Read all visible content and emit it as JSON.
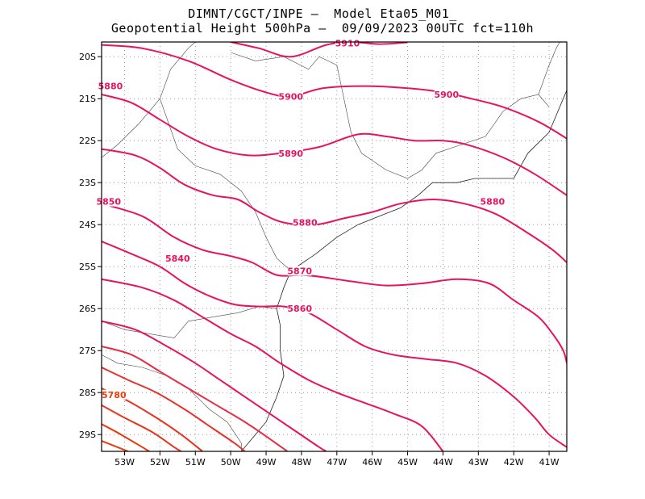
{
  "header": {
    "title_line1": "DIMNT/CGCT/INPE –  Model Eta05_M01_",
    "title_line2": "Geopotential Height 500hPa –  09/09/2023 00UTC fct=110h"
  },
  "map": {
    "lon_range": [
      -53.65,
      -40.5
    ],
    "lat_range": [
      -29.4,
      -19.65
    ],
    "x_ticks": [
      {
        "value": -53,
        "label": "53W"
      },
      {
        "value": -52,
        "label": "52W"
      },
      {
        "value": -51,
        "label": "51W"
      },
      {
        "value": -50,
        "label": "50W"
      },
      {
        "value": -49,
        "label": "49W"
      },
      {
        "value": -48,
        "label": "48W"
      },
      {
        "value": -47,
        "label": "47W"
      },
      {
        "value": -46,
        "label": "46W"
      },
      {
        "value": -45,
        "label": "45W"
      },
      {
        "value": -44,
        "label": "44W"
      },
      {
        "value": -43,
        "label": "43W"
      },
      {
        "value": -42,
        "label": "42W"
      },
      {
        "value": -41,
        "label": "41W"
      }
    ],
    "y_ticks": [
      {
        "value": -20,
        "label": "20S"
      },
      {
        "value": -21,
        "label": "21S"
      },
      {
        "value": -22,
        "label": "22S"
      },
      {
        "value": -23,
        "label": "23S"
      },
      {
        "value": -24,
        "label": "24S"
      },
      {
        "value": -25,
        "label": "25S"
      },
      {
        "value": -26,
        "label": "26S"
      },
      {
        "value": -27,
        "label": "27S"
      },
      {
        "value": -28,
        "label": "28S"
      },
      {
        "value": -29,
        "label": "29S"
      }
    ],
    "grid": "dotted",
    "coastline": [
      [
        -48.7,
        -26.0
      ],
      [
        -48.6,
        -26.4
      ],
      [
        -48.6,
        -27.0
      ],
      [
        -48.5,
        -27.6
      ],
      [
        -48.7,
        -28.1
      ],
      [
        -49.0,
        -28.7
      ],
      [
        -49.4,
        -29.1
      ],
      [
        -49.7,
        -29.4
      ]
    ],
    "coast_north": [
      [
        -48.7,
        -26.0
      ],
      [
        -48.5,
        -25.5
      ],
      [
        -48.3,
        -25.1
      ],
      [
        -47.6,
        -24.7
      ],
      [
        -47.0,
        -24.3
      ],
      [
        -46.4,
        -24.0
      ],
      [
        -45.8,
        -23.8
      ],
      [
        -45.2,
        -23.6
      ],
      [
        -44.7,
        -23.3
      ],
      [
        -44.3,
        -23.0
      ],
      [
        -43.6,
        -23.0
      ],
      [
        -43.1,
        -22.9
      ],
      [
        -42.5,
        -22.9
      ],
      [
        -42.0,
        -22.9
      ],
      [
        -41.6,
        -22.3
      ],
      [
        -41.0,
        -21.8
      ],
      [
        -40.7,
        -21.2
      ],
      [
        -40.5,
        -20.8
      ]
    ],
    "borders": [
      [
        [
          -53.65,
          -26.3
        ],
        [
          -53.0,
          -26.5
        ],
        [
          -52.3,
          -26.6
        ],
        [
          -51.6,
          -26.7
        ],
        [
          -51.2,
          -26.3
        ],
        [
          -50.5,
          -26.2
        ],
        [
          -49.8,
          -26.1
        ],
        [
          -49.2,
          -25.95
        ],
        [
          -48.7,
          -26.0
        ]
      ],
      [
        [
          -53.65,
          -27.1
        ],
        [
          -53.2,
          -27.3
        ],
        [
          -52.5,
          -27.4
        ],
        [
          -51.8,
          -27.6
        ],
        [
          -51.2,
          -27.9
        ],
        [
          -50.6,
          -28.4
        ],
        [
          -50.1,
          -28.7
        ],
        [
          -49.7,
          -29.2
        ],
        [
          -49.7,
          -29.4
        ]
      ],
      [
        [
          -53.65,
          -22.4
        ],
        [
          -53.2,
          -22.1
        ],
        [
          -52.6,
          -21.6
        ],
        [
          -52.0,
          -21.0
        ],
        [
          -51.7,
          -20.3
        ],
        [
          -51.2,
          -19.8
        ],
        [
          -51.0,
          -19.65
        ]
      ],
      [
        [
          -52.0,
          -21.0
        ],
        [
          -51.5,
          -22.2
        ],
        [
          -51.0,
          -22.6
        ],
        [
          -50.3,
          -22.8
        ],
        [
          -49.7,
          -23.2
        ],
        [
          -49.3,
          -23.7
        ],
        [
          -49.0,
          -24.3
        ],
        [
          -48.7,
          -24.8
        ],
        [
          -48.3,
          -25.1
        ]
      ],
      [
        [
          -50.0,
          -19.9
        ],
        [
          -49.3,
          -20.1
        ],
        [
          -48.5,
          -20.0
        ],
        [
          -47.8,
          -20.3
        ],
        [
          -47.5,
          -20.0
        ],
        [
          -47.0,
          -20.2
        ]
      ],
      [
        [
          -47.0,
          -20.2
        ],
        [
          -46.8,
          -21.0
        ],
        [
          -46.6,
          -21.8
        ],
        [
          -46.3,
          -22.3
        ],
        [
          -45.6,
          -22.7
        ],
        [
          -45.0,
          -22.9
        ],
        [
          -44.6,
          -22.7
        ],
        [
          -44.2,
          -22.3
        ],
        [
          -43.5,
          -22.1
        ],
        [
          -42.8,
          -21.9
        ],
        [
          -42.3,
          -21.3
        ],
        [
          -41.8,
          -21.0
        ],
        [
          -41.3,
          -20.9
        ],
        [
          -41.0,
          -21.2
        ]
      ],
      [
        [
          -41.3,
          -20.9
        ],
        [
          -41.0,
          -20.2
        ],
        [
          -40.8,
          -19.8
        ],
        [
          -40.7,
          -19.65
        ]
      ]
    ],
    "contours": [
      {
        "value": 5910,
        "color": "#e8125e",
        "label": "5910",
        "label_at": [
          -46.7,
          -19.68
        ],
        "points": [
          [
            -50.0,
            -19.65
          ],
          [
            -49.2,
            -19.8
          ],
          [
            -48.3,
            -20.0
          ],
          [
            -47.3,
            -19.72
          ],
          [
            -46.6,
            -19.65
          ],
          [
            -45.8,
            -19.7
          ],
          [
            -45.0,
            -19.66
          ]
        ]
      },
      {
        "value": 5900,
        "color": "#e8125e",
        "label": "5900",
        "label_at": [
          -48.3,
          -20.95
        ],
        "points": [
          [
            -53.65,
            -19.72
          ],
          [
            -52.5,
            -19.8
          ],
          [
            -51.2,
            -20.1
          ],
          [
            -50.0,
            -20.55
          ],
          [
            -49.0,
            -20.85
          ],
          [
            -48.3,
            -20.95
          ],
          [
            -47.4,
            -20.75
          ],
          [
            -46.2,
            -20.7
          ],
          [
            -45.0,
            -20.75
          ],
          [
            -44.0,
            -20.85
          ],
          [
            -43.2,
            -21.0
          ],
          [
            -42.3,
            -21.2
          ],
          [
            -41.3,
            -21.55
          ],
          [
            -40.5,
            -21.95
          ]
        ]
      },
      {
        "value": 5900,
        "color": "#e8125e",
        "label": "5900",
        "label_at": [
          -43.9,
          -20.9
        ],
        "points": []
      },
      {
        "value": 5890,
        "color": "#e8125e",
        "label": "5890",
        "label_at": [
          -48.3,
          -22.3
        ],
        "points": [
          [
            -53.65,
            -20.9
          ],
          [
            -52.8,
            -21.1
          ],
          [
            -52.0,
            -21.5
          ],
          [
            -51.2,
            -21.9
          ],
          [
            -50.4,
            -22.2
          ],
          [
            -49.5,
            -22.35
          ],
          [
            -48.6,
            -22.3
          ],
          [
            -47.5,
            -22.15
          ],
          [
            -46.4,
            -21.85
          ],
          [
            -45.6,
            -21.9
          ],
          [
            -44.8,
            -22.0
          ],
          [
            -44.0,
            -22.0
          ],
          [
            -43.3,
            -22.1
          ],
          [
            -42.3,
            -22.4
          ],
          [
            -41.4,
            -22.8
          ],
          [
            -40.5,
            -23.3
          ]
        ]
      },
      {
        "value": 5880,
        "color": "#e8125e",
        "label": "5880",
        "label_at": [
          -53.4,
          -20.7
        ],
        "points": []
      },
      {
        "value": 5880,
        "color": "#e8125e",
        "label": "5880",
        "label_at": [
          -47.9,
          -23.95
        ],
        "points": [
          [
            -53.65,
            -22.2
          ],
          [
            -52.7,
            -22.35
          ],
          [
            -52.0,
            -22.65
          ],
          [
            -51.3,
            -23.05
          ],
          [
            -50.5,
            -23.3
          ],
          [
            -49.8,
            -23.4
          ],
          [
            -49.2,
            -23.7
          ],
          [
            -48.5,
            -23.95
          ],
          [
            -47.6,
            -24.0
          ],
          [
            -46.8,
            -23.85
          ],
          [
            -46.0,
            -23.7
          ],
          [
            -45.2,
            -23.5
          ],
          [
            -44.3,
            -23.4
          ],
          [
            -43.4,
            -23.5
          ],
          [
            -42.5,
            -23.75
          ],
          [
            -41.6,
            -24.2
          ],
          [
            -40.9,
            -24.6
          ],
          [
            -40.5,
            -24.9
          ]
        ]
      },
      {
        "value": 5880,
        "color": "#e8125e",
        "label": "5880",
        "label_at": [
          -42.6,
          -23.45
        ],
        "points": []
      },
      {
        "value": 5870,
        "color": "#e8125e",
        "label": "5870",
        "label_at": [
          -48.05,
          -25.1
        ],
        "points": [
          [
            -53.65,
            -23.5
          ],
          [
            -52.5,
            -23.8
          ],
          [
            -51.6,
            -24.3
          ],
          [
            -50.8,
            -24.6
          ],
          [
            -50.0,
            -24.75
          ],
          [
            -49.4,
            -24.9
          ],
          [
            -48.7,
            -25.2
          ],
          [
            -48.0,
            -25.2
          ],
          [
            -47.4,
            -25.25
          ],
          [
            -46.6,
            -25.35
          ],
          [
            -45.6,
            -25.45
          ],
          [
            -44.6,
            -25.4
          ],
          [
            -43.6,
            -25.3
          ],
          [
            -42.7,
            -25.4
          ],
          [
            -42.0,
            -25.8
          ],
          [
            -41.3,
            -26.2
          ],
          [
            -40.9,
            -26.6
          ],
          [
            -40.6,
            -27.0
          ],
          [
            -40.5,
            -27.3
          ]
        ]
      },
      {
        "value": 5860,
        "color": "#e8125e",
        "label": "5860",
        "label_at": [
          -48.05,
          -26.0
        ],
        "points": [
          [
            -53.65,
            -24.4
          ],
          [
            -52.8,
            -24.7
          ],
          [
            -52.0,
            -25.0
          ],
          [
            -51.3,
            -25.4
          ],
          [
            -50.6,
            -25.7
          ],
          [
            -49.9,
            -25.9
          ],
          [
            -49.2,
            -25.95
          ],
          [
            -48.5,
            -25.95
          ],
          [
            -47.8,
            -26.1
          ],
          [
            -47.0,
            -26.5
          ],
          [
            -46.2,
            -26.9
          ],
          [
            -45.4,
            -27.1
          ],
          [
            -44.5,
            -27.2
          ],
          [
            -43.6,
            -27.3
          ],
          [
            -42.8,
            -27.6
          ],
          [
            -42.0,
            -28.1
          ],
          [
            -41.4,
            -28.6
          ],
          [
            -41.0,
            -29.0
          ],
          [
            -40.5,
            -29.3
          ]
        ]
      },
      {
        "value": 5850,
        "color": "#e8125e",
        "label": "5850",
        "label_at": [
          -53.45,
          -23.45
        ],
        "points": [
          [
            -53.65,
            -25.3
          ],
          [
            -52.5,
            -25.5
          ],
          [
            -51.6,
            -25.8
          ],
          [
            -50.8,
            -26.2
          ],
          [
            -50.0,
            -26.6
          ],
          [
            -49.3,
            -26.9
          ],
          [
            -48.6,
            -27.3
          ],
          [
            -47.8,
            -27.7
          ],
          [
            -47.0,
            -28.0
          ],
          [
            -46.2,
            -28.25
          ],
          [
            -45.4,
            -28.5
          ],
          [
            -44.6,
            -28.8
          ],
          [
            -44.0,
            -29.4
          ]
        ]
      },
      {
        "value": 5840,
        "color": "#e8125e",
        "label": "5840",
        "label_at": [
          -51.5,
          -24.8
        ],
        "points": [
          [
            -53.65,
            -26.3
          ],
          [
            -52.7,
            -26.5
          ],
          [
            -51.8,
            -26.9
          ],
          [
            -51.0,
            -27.3
          ],
          [
            -50.3,
            -27.7
          ],
          [
            -49.6,
            -28.1
          ],
          [
            -48.9,
            -28.5
          ],
          [
            -48.2,
            -28.9
          ],
          [
            -47.5,
            -29.3
          ],
          [
            -47.3,
            -29.4
          ]
        ]
      },
      {
        "value": 5830,
        "color": "#e82a44",
        "label": "",
        "label_at": null,
        "points": [
          [
            -53.65,
            -26.9
          ],
          [
            -52.8,
            -27.1
          ],
          [
            -52.0,
            -27.5
          ],
          [
            -51.2,
            -27.9
          ],
          [
            -50.4,
            -28.3
          ],
          [
            -49.6,
            -28.7
          ],
          [
            -48.9,
            -29.1
          ],
          [
            -48.4,
            -29.4
          ]
        ]
      },
      {
        "value": 5820,
        "color": "#e8302c",
        "label": "",
        "label_at": null,
        "points": [
          [
            -53.65,
            -27.4
          ],
          [
            -52.9,
            -27.7
          ],
          [
            -52.1,
            -28.0
          ],
          [
            -51.3,
            -28.4
          ],
          [
            -50.6,
            -28.8
          ],
          [
            -49.9,
            -29.2
          ],
          [
            -49.6,
            -29.4
          ]
        ]
      },
      {
        "value": 5810,
        "color": "#e8321e",
        "label": "",
        "label_at": null,
        "points": [
          [
            -53.65,
            -27.9
          ],
          [
            -52.9,
            -28.2
          ],
          [
            -52.1,
            -28.6
          ],
          [
            -51.4,
            -29.0
          ],
          [
            -50.8,
            -29.4
          ]
        ]
      },
      {
        "value": 5800,
        "color": "#e83616",
        "label": "",
        "label_at": null,
        "points": [
          [
            -53.65,
            -28.3
          ],
          [
            -53.0,
            -28.6
          ],
          [
            -52.2,
            -28.95
          ],
          [
            -51.6,
            -29.3
          ],
          [
            -51.4,
            -29.4
          ]
        ]
      },
      {
        "value": 5790,
        "color": "#e83a10",
        "label": "",
        "label_at": null,
        "points": [
          [
            -53.65,
            -28.75
          ],
          [
            -53.1,
            -29.0
          ],
          [
            -52.5,
            -29.3
          ],
          [
            -52.3,
            -29.4
          ]
        ]
      },
      {
        "value": 5780,
        "color": "#ea3d0a",
        "label": "5780",
        "label_at": [
          -53.3,
          -28.05
        ],
        "points": [
          [
            -53.65,
            -29.15
          ],
          [
            -53.2,
            -29.3
          ],
          [
            -52.9,
            -29.4
          ]
        ]
      }
    ]
  }
}
